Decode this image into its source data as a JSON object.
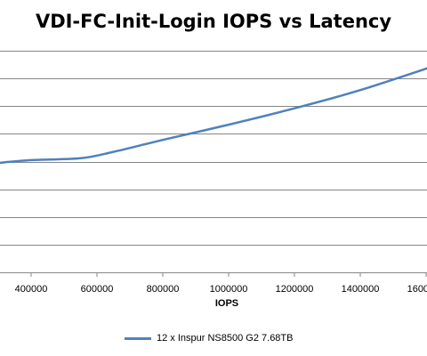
{
  "chart_data": {
    "type": "line",
    "title": "VDI-FC-Init-Login IOPS vs Latency",
    "xlabel": "IOPS",
    "ylabel": "",
    "xlim": [
      300000,
      1650000
    ],
    "ylim": [
      0,
      8
    ],
    "x_ticks": [
      400000,
      600000,
      800000,
      1000000,
      1200000,
      1400000,
      1600000
    ],
    "y_ticks": [
      0,
      1,
      2,
      3,
      4,
      5,
      6,
      7,
      8
    ],
    "y_tick_labels_visible": false,
    "grid": "horizontal",
    "legend": "bottom",
    "series": [
      {
        "name": "12 x Inspur NS8500 G2 7.68TB",
        "color": "#4f81bd",
        "points": [
          [
            300000,
            3.95
          ],
          [
            400000,
            4.05
          ],
          [
            550000,
            4.12
          ],
          [
            650000,
            4.35
          ],
          [
            800000,
            4.78
          ],
          [
            1000000,
            5.33
          ],
          [
            1200000,
            5.92
          ],
          [
            1400000,
            6.58
          ],
          [
            1650000,
            7.55
          ]
        ]
      }
    ]
  }
}
